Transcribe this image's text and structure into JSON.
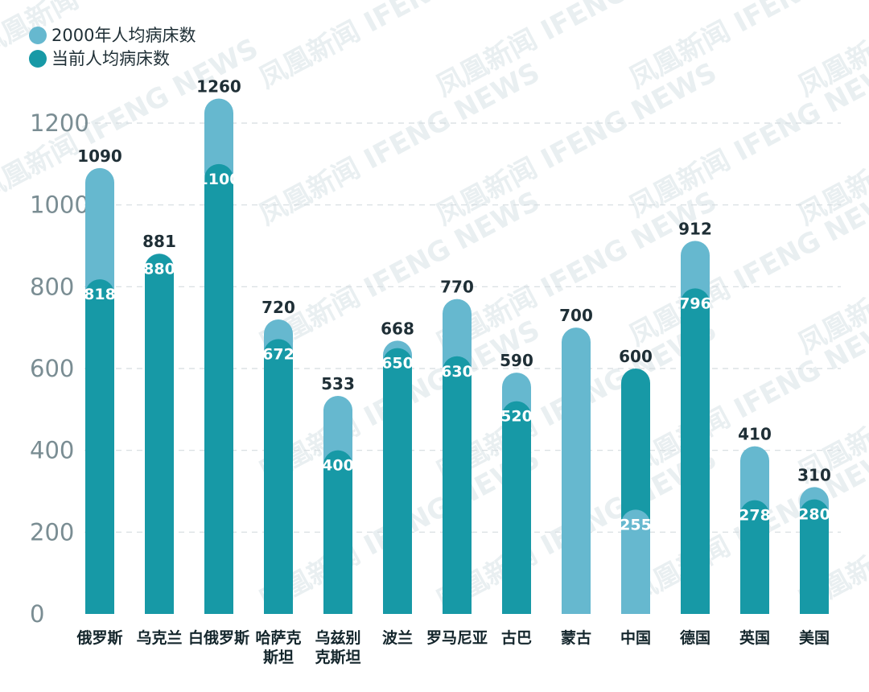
{
  "chart_data": {
    "type": "bar",
    "categories": [
      [
        "俄罗斯"
      ],
      [
        "乌克兰"
      ],
      [
        "白俄罗斯"
      ],
      [
        "哈萨克",
        "斯坦"
      ],
      [
        "乌兹别",
        "克斯坦"
      ],
      [
        "波兰"
      ],
      [
        "罗马尼亚"
      ],
      [
        "古巴"
      ],
      [
        "蒙古"
      ],
      [
        "中国"
      ],
      [
        "德国"
      ],
      [
        "英国"
      ],
      [
        "美国"
      ]
    ],
    "series": [
      {
        "name": "2000年人均病床数",
        "color": "#66b8cf",
        "values": [
          1090,
          881,
          1260,
          720,
          533,
          668,
          770,
          590,
          700,
          255,
          912,
          410,
          310
        ]
      },
      {
        "name": "当前人均病床数",
        "color": "#1799a6",
        "values": [
          818,
          880,
          1100,
          672,
          400,
          650,
          630,
          520,
          700,
          600,
          796,
          278,
          280
        ]
      }
    ],
    "ylim": [
      0,
      1300
    ],
    "yticks": [
      0,
      200,
      400,
      600,
      800,
      1000,
      1200
    ],
    "grid": true,
    "legend_position": "top-left"
  },
  "watermark": "凤凰新闻 IFENG NEWS"
}
